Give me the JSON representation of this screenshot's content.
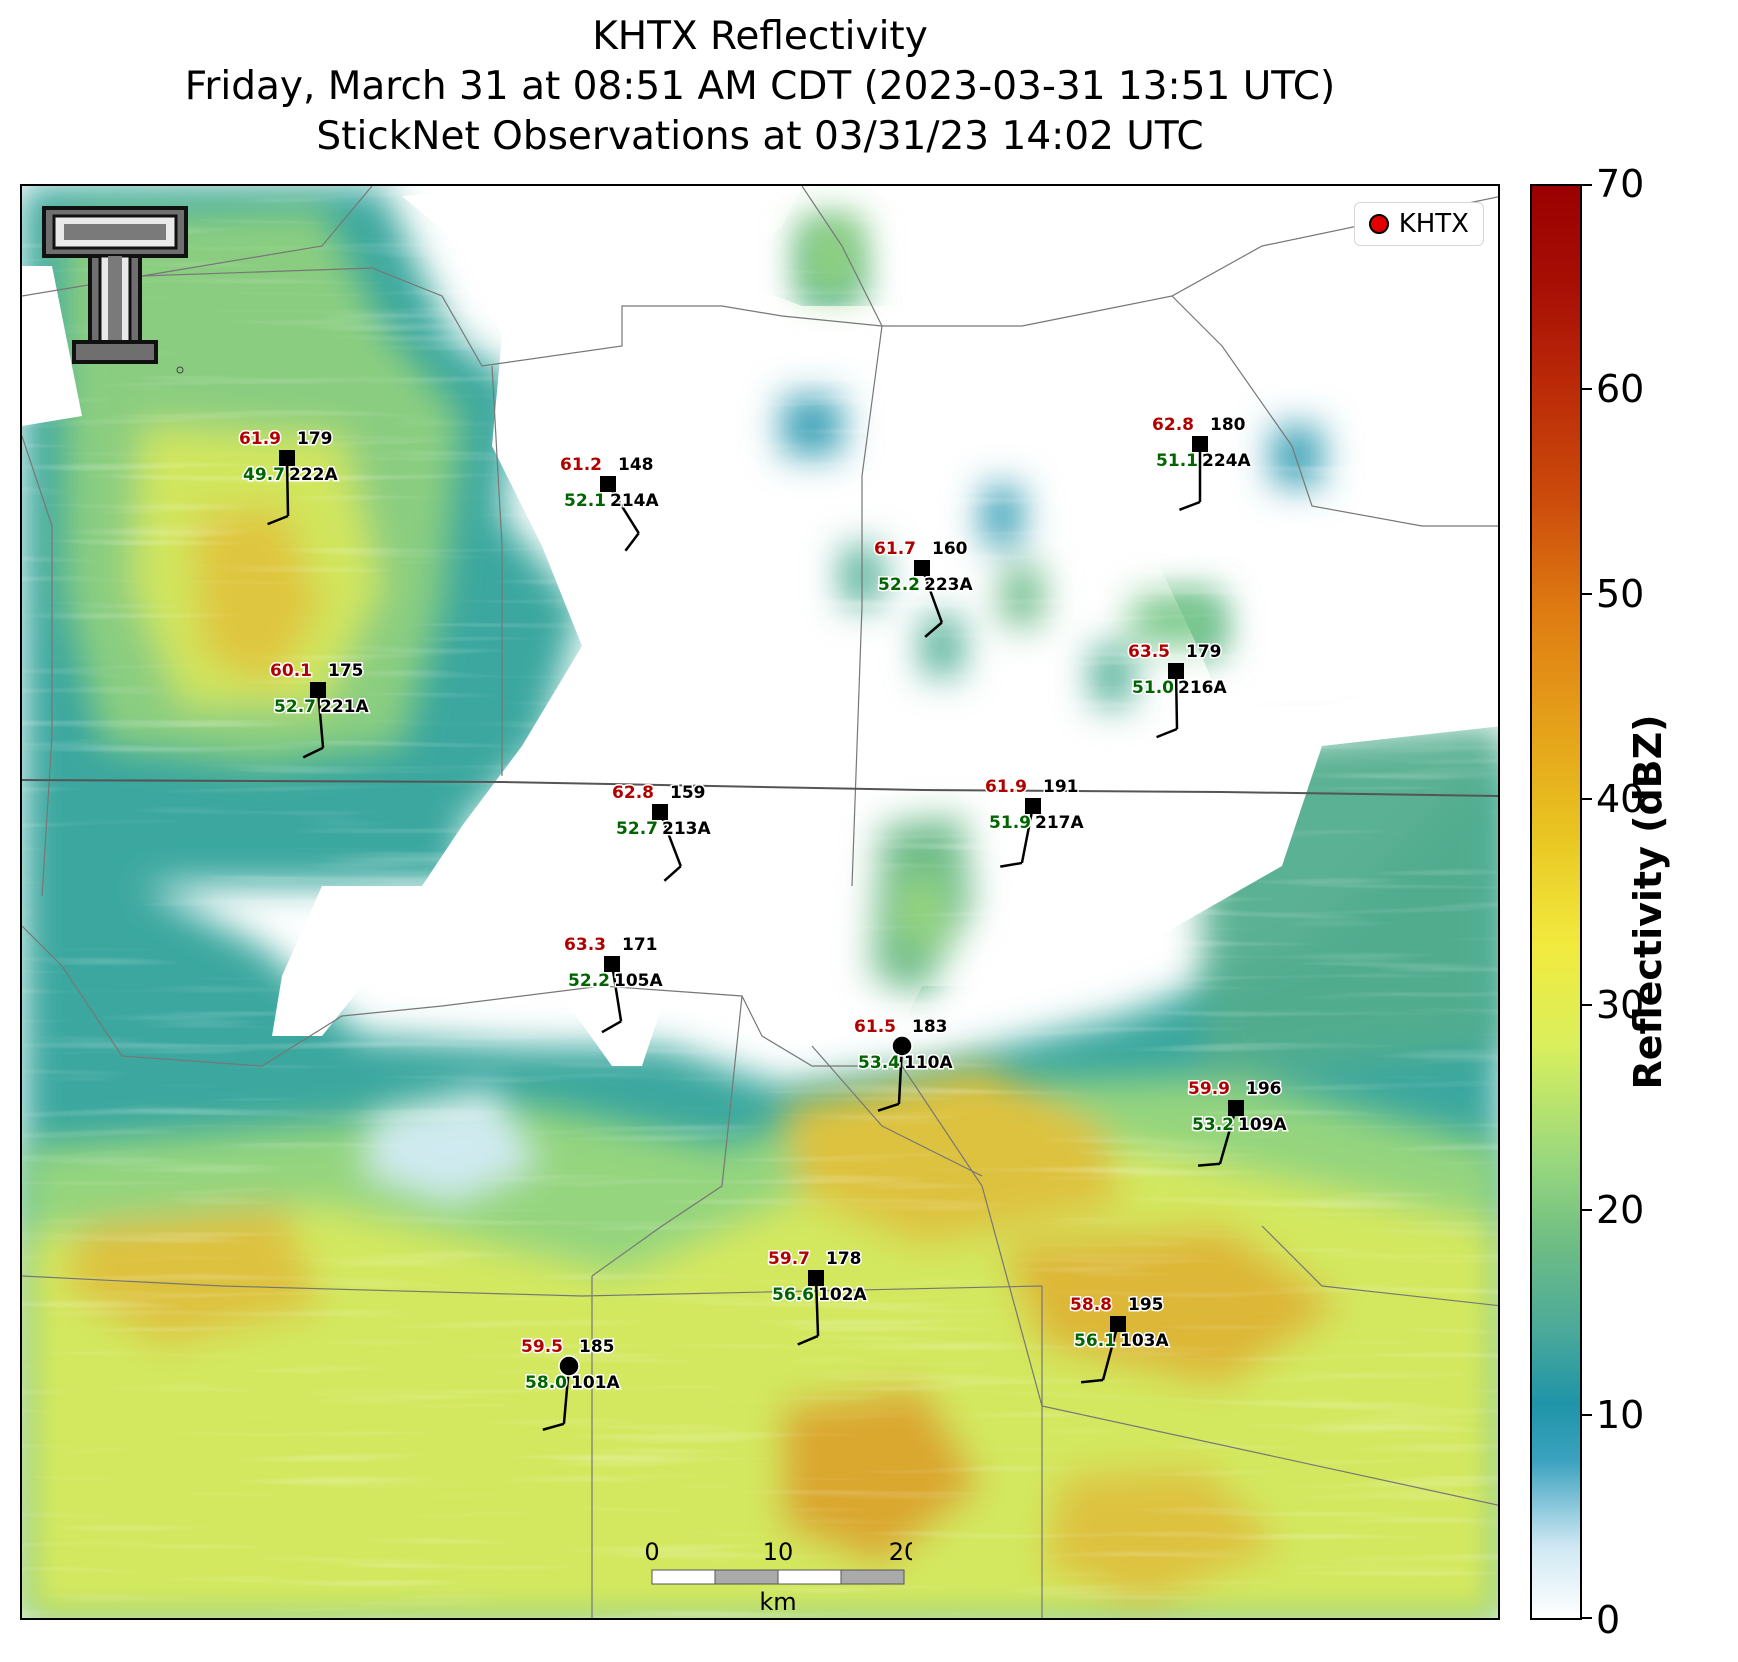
{
  "title": {
    "line1": "KHTX Reflectivity",
    "line2": "Friday, March 31 at 08:51 AM CDT (2023-03-31 13:51 UTC)",
    "line3": "StickNet Observations at 03/31/23 14:02 UTC"
  },
  "legend": {
    "label": "KHTX",
    "marker_color": "#e00000"
  },
  "logo": {
    "icon": "texas-tech-double-t-logo"
  },
  "scale_bar": {
    "ticks": [
      "0",
      "10",
      "20"
    ],
    "unit": "km"
  },
  "colorbar": {
    "label": "Reflectivity (dBZ)",
    "min": 0,
    "max": 70,
    "ticks": [
      0,
      10,
      20,
      30,
      40,
      50,
      60,
      70
    ],
    "colors": [
      "#ffffff",
      "#1f94a8",
      "#9ad87d",
      "#f2ea3e",
      "#e5a21a",
      "#cc4c0c",
      "#9a0000"
    ]
  },
  "stations": [
    {
      "id": "222A",
      "temp": "61.9",
      "dir": "179",
      "dew": "49.7",
      "obs_marker": "square"
    },
    {
      "id": "214A",
      "temp": "61.2",
      "dir": "148",
      "dew": "52.1",
      "obs_marker": "square"
    },
    {
      "id": "223A",
      "temp": "61.7",
      "dir": "160",
      "dew": "52.2",
      "obs_marker": "square"
    },
    {
      "id": "224A",
      "temp": "62.8",
      "dir": "180",
      "dew": "51.1",
      "obs_marker": "square"
    },
    {
      "id": "221A",
      "temp": "60.1",
      "dir": "175",
      "dew": "52.7",
      "obs_marker": "square"
    },
    {
      "id": "216A",
      "temp": "63.5",
      "dir": "179",
      "dew": "51.0",
      "obs_marker": "square"
    },
    {
      "id": "213A",
      "temp": "62.8",
      "dir": "159",
      "dew": "52.7",
      "obs_marker": "square"
    },
    {
      "id": "217A",
      "temp": "61.9",
      "dir": "191",
      "dew": "51.9",
      "obs_marker": "square"
    },
    {
      "id": "105A",
      "temp": "63.3",
      "dir": "171",
      "dew": "52.2",
      "obs_marker": "square"
    },
    {
      "id": "110A",
      "temp": "61.5",
      "dir": "183",
      "dew": "53.4",
      "obs_marker": "circle"
    },
    {
      "id": "109A",
      "temp": "59.9",
      "dir": "196",
      "dew": "53.2",
      "obs_marker": "square"
    },
    {
      "id": "102A",
      "temp": "59.7",
      "dir": "178",
      "dew": "56.6",
      "obs_marker": "square"
    },
    {
      "id": "103A",
      "temp": "58.8",
      "dir": "195",
      "dew": "56.1",
      "obs_marker": "square"
    },
    {
      "id": "101A",
      "temp": "59.5",
      "dir": "185",
      "dew": "58.0",
      "obs_marker": "circle"
    }
  ],
  "text_colors": {
    "temp": "#b00000",
    "dew": "#006400",
    "label": "#000000"
  }
}
